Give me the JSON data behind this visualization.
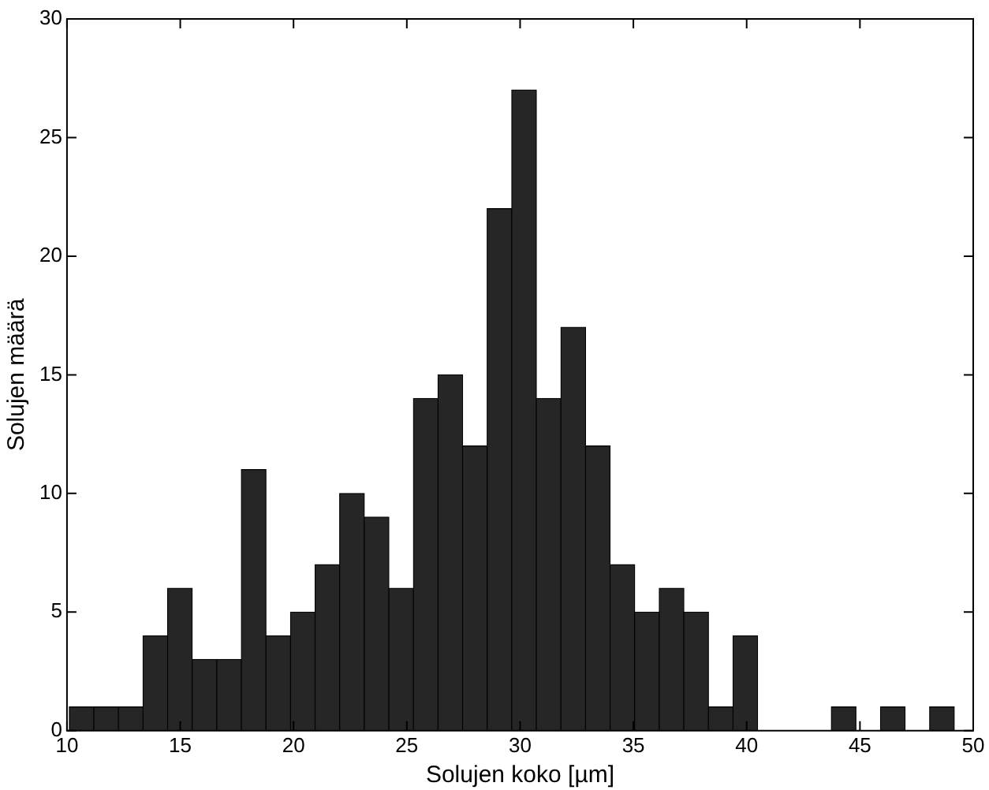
{
  "chart_data": {
    "type": "histogram",
    "xlabel": "Solujen koko [µm]",
    "ylabel": "Solujen määrä",
    "bins": [
      10.1,
      11.19,
      12.27,
      13.36,
      14.44,
      15.53,
      16.61,
      17.7,
      18.78,
      19.87,
      20.95,
      22.04,
      23.12,
      24.21,
      25.29,
      26.38,
      27.46,
      28.55,
      29.63,
      30.72,
      31.8,
      32.89,
      33.97,
      35.06,
      36.14,
      37.23,
      38.31,
      39.4,
      40.48,
      41.57,
      42.65,
      43.74,
      44.82,
      45.91,
      46.99,
      48.08,
      49.16
    ],
    "values": [
      1,
      1,
      1,
      4,
      6,
      3,
      3,
      11,
      4,
      5,
      7,
      10,
      9,
      6,
      14,
      15,
      12,
      22,
      27,
      14,
      17,
      12,
      7,
      5,
      6,
      5,
      1,
      4,
      0,
      0,
      0,
      1,
      0,
      1,
      0,
      1
    ],
    "color": "#262626",
    "xlim": [
      10,
      50
    ],
    "xticks": [
      10,
      15,
      20,
      25,
      30,
      35,
      40,
      45,
      50
    ],
    "ylim": [
      0,
      30
    ],
    "yticks": [
      0,
      5,
      10,
      15,
      20,
      25,
      30
    ],
    "grid": false,
    "legend": false
  }
}
